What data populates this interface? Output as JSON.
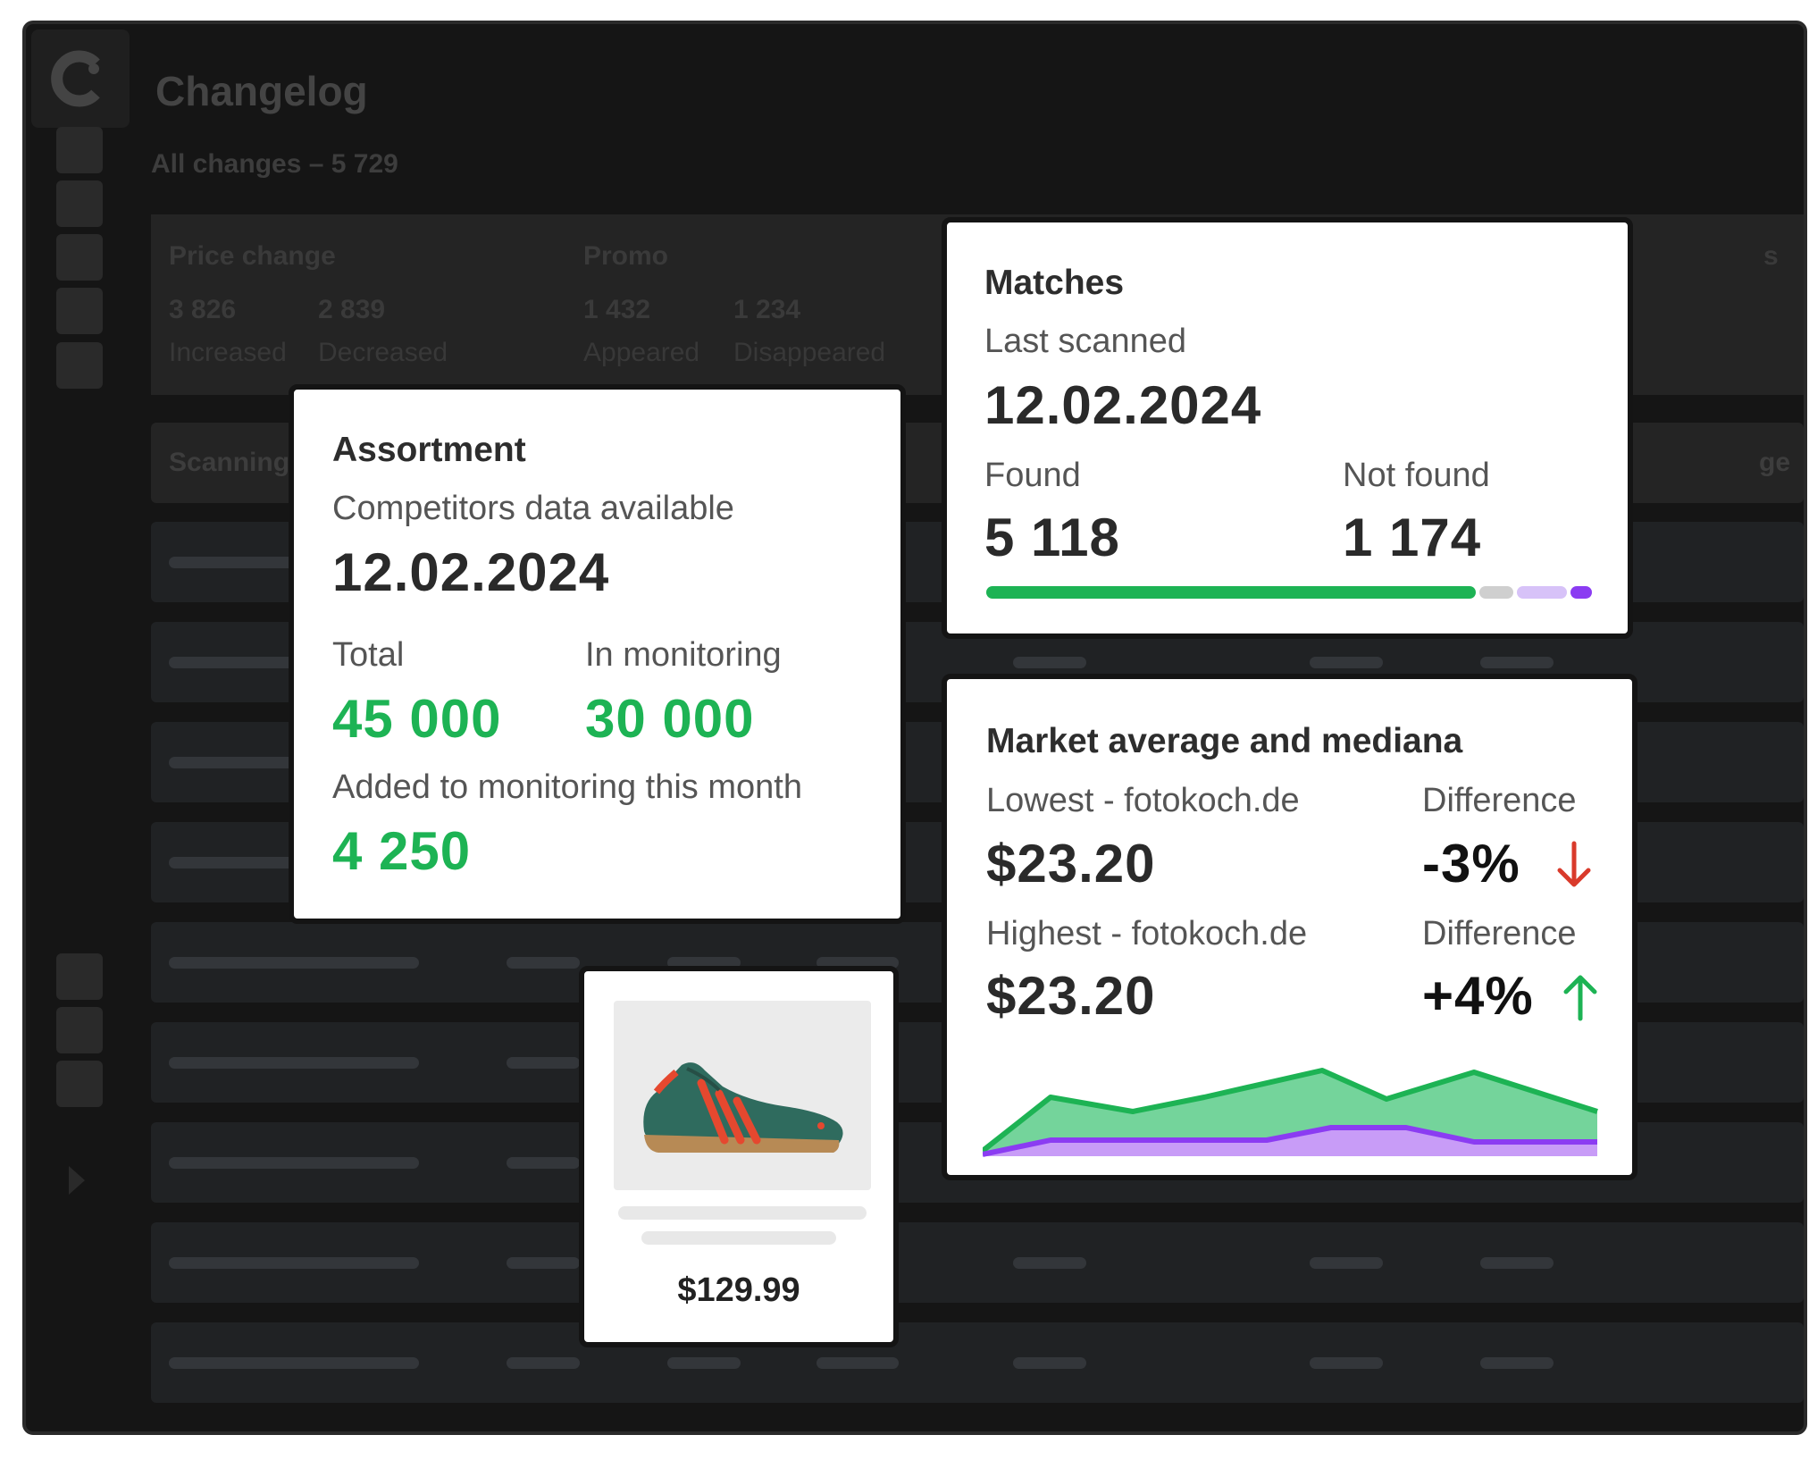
{
  "header": {
    "title": "Changelog",
    "subtitle": "All changes – 5 729"
  },
  "stats": {
    "price_change": {
      "title": "Price change",
      "increased": "3 826",
      "increased_label": "Increased",
      "decreased": "2 839",
      "decreased_label": "Decreased"
    },
    "promo": {
      "title": "Promo",
      "appeared": "1 432",
      "appeared_label": "Appeared",
      "disappeared": "1 234",
      "disappeared_label": "Disappeared"
    },
    "extra_title_fragment": "s"
  },
  "table": {
    "header_left": "Scanning",
    "header_right_fragment": "ge"
  },
  "assortment": {
    "title": "Assortment",
    "data_label": "Competitors data available",
    "date": "12.02.2024",
    "total_label": "Total",
    "total": "45 000",
    "monitoring_label": "In monitoring",
    "monitoring": "30 000",
    "added_label": "Added to monitoring this month",
    "added": "4 250"
  },
  "matches": {
    "title": "Matches",
    "scanned_label": "Last scanned",
    "date": "12.02.2024",
    "found_label": "Found",
    "found": "5 118",
    "not_found_label": "Not found",
    "not_found": "1 174"
  },
  "market": {
    "title": "Market average and mediana",
    "lowest_label": "Lowest - fotokoch.de",
    "lowest": "$23.20",
    "diff_label_1": "Difference",
    "diff_1": "-3%",
    "highest_label": "Highest - fotokoch.de",
    "highest": "$23.20",
    "diff_label_2": "Difference",
    "diff_2": "+4%",
    "colors": {
      "high_fill": "#74d49b",
      "high_line": "#1db354",
      "low_fill": "#c89cf7",
      "low_line": "#8b3cf2",
      "down": "#d93a2b",
      "up": "#1db354"
    }
  },
  "product": {
    "price": "$129.99"
  },
  "colors": {
    "green": "#1db354",
    "purple": "#8b3cf2",
    "light_purple": "#d7c2f8",
    "gray": "#cfcfcf"
  }
}
